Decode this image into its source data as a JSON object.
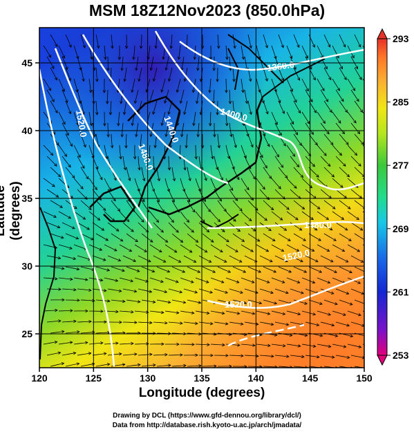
{
  "title": "MSM 18Z12Nov2023 (850.0hPa)",
  "axes": {
    "xlabel": "Longitude (degrees)",
    "ylabel": "Latitude  (degrees)",
    "xlim": [
      120,
      150
    ],
    "ylim": [
      22.5,
      47.6
    ],
    "xticks": [
      "120",
      "125",
      "130",
      "135",
      "140",
      "145",
      "150"
    ],
    "yticks": [
      "25",
      "30",
      "35",
      "40",
      "45"
    ]
  },
  "colorbar": {
    "min": 253,
    "max": 293,
    "labels": [
      "293",
      "285",
      "277",
      "269",
      "261",
      "253"
    ],
    "colors": [
      "#e2007a",
      "#7a12c8",
      "#1428d2",
      "#1a64e6",
      "#18c8e6",
      "#22dc8c",
      "#3cc83c",
      "#b4e61e",
      "#f0e614",
      "#fab432",
      "#ff7828",
      "#e63228"
    ]
  },
  "contours": [
    {
      "label": "1360.0"
    },
    {
      "label": "1400.0"
    },
    {
      "label": "1440.0"
    },
    {
      "label": "1480.0"
    },
    {
      "label": "1480.0"
    },
    {
      "label": "1520.0"
    },
    {
      "label": "1520.0"
    },
    {
      "label": "1520.0"
    }
  ],
  "credits": [
    "Drawing by DCL (https://www.gfd-dennou.org/library/dcl/)",
    "Data from http://database.rish.kyoto-u.ac.jp/arch/jmadata/"
  ]
}
